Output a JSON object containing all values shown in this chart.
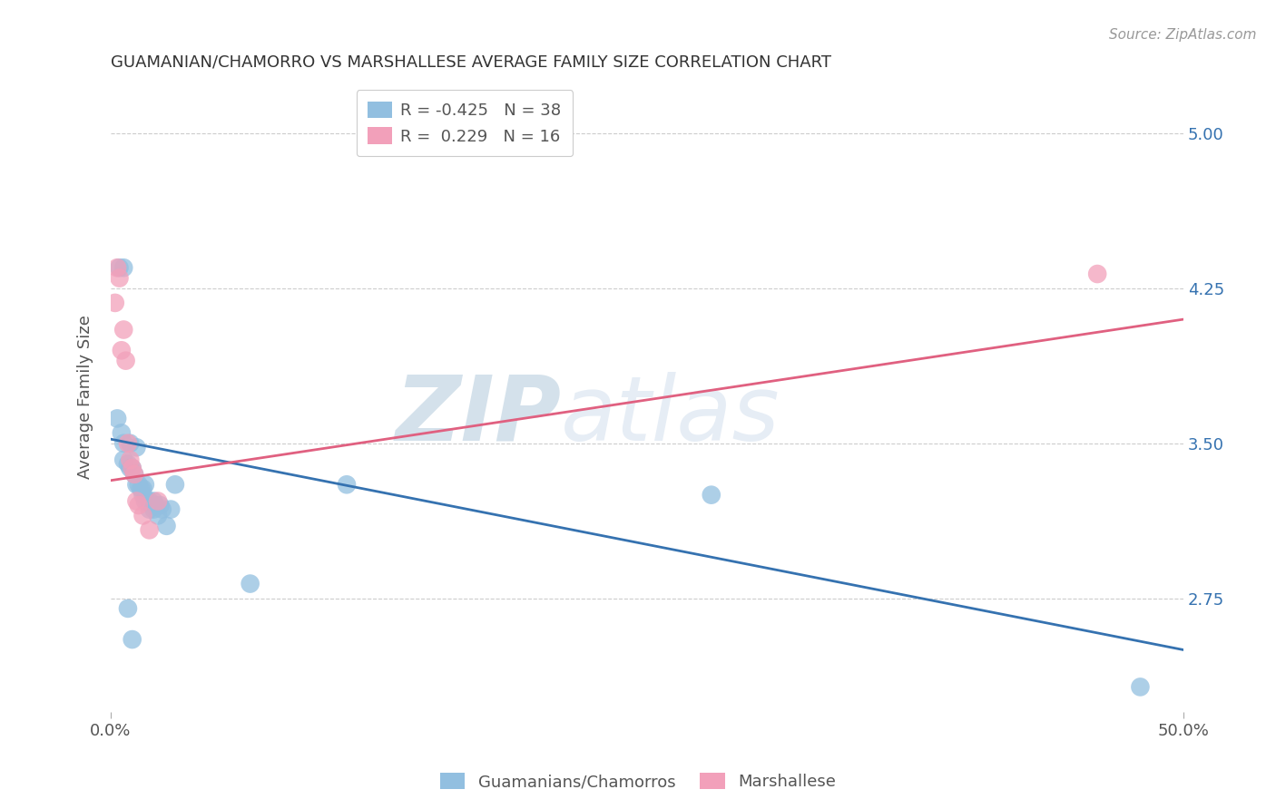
{
  "title": "GUAMANIAN/CHAMORRO VS MARSHALLESE AVERAGE FAMILY SIZE CORRELATION CHART",
  "source": "Source: ZipAtlas.com",
  "ylabel": "Average Family Size",
  "xlim": [
    0.0,
    0.5
  ],
  "ylim": [
    2.2,
    5.25
  ],
  "yticks": [
    2.75,
    3.5,
    4.25,
    5.0
  ],
  "xticks": [
    0.0,
    0.5
  ],
  "xticklabels": [
    "0.0%",
    "50.0%"
  ],
  "yticklabels_right": [
    "2.75",
    "3.50",
    "4.25",
    "5.00"
  ],
  "blue_color": "#92BFE0",
  "pink_color": "#F2A0BA",
  "blue_line_color": "#3572B0",
  "pink_line_color": "#E06080",
  "legend_blue_r": "-0.425",
  "legend_blue_n": "38",
  "legend_pink_r": "0.229",
  "legend_pink_n": "16",
  "blue_scatter_x": [
    0.004,
    0.006,
    0.003,
    0.005,
    0.006,
    0.009,
    0.006,
    0.008,
    0.009,
    0.01,
    0.011,
    0.012,
    0.012,
    0.013,
    0.014,
    0.015,
    0.016,
    0.015,
    0.016,
    0.017,
    0.018,
    0.019,
    0.02,
    0.018,
    0.02,
    0.021,
    0.022,
    0.023,
    0.024,
    0.026,
    0.028,
    0.03,
    0.065,
    0.11,
    0.28,
    0.48,
    0.008,
    0.01
  ],
  "blue_scatter_y": [
    4.35,
    4.35,
    3.62,
    3.55,
    3.5,
    3.5,
    3.42,
    3.4,
    3.38,
    3.38,
    3.35,
    3.48,
    3.3,
    3.3,
    3.28,
    3.28,
    3.3,
    3.25,
    3.22,
    3.22,
    3.22,
    3.2,
    3.22,
    3.18,
    3.18,
    3.2,
    3.15,
    3.2,
    3.18,
    3.1,
    3.18,
    3.3,
    2.82,
    3.3,
    3.25,
    2.32,
    2.7,
    2.55
  ],
  "pink_scatter_x": [
    0.003,
    0.004,
    0.002,
    0.006,
    0.005,
    0.007,
    0.008,
    0.009,
    0.01,
    0.011,
    0.012,
    0.013,
    0.015,
    0.018,
    0.022,
    0.46
  ],
  "pink_scatter_y": [
    4.35,
    4.3,
    4.18,
    4.05,
    3.95,
    3.9,
    3.5,
    3.42,
    3.38,
    3.35,
    3.22,
    3.2,
    3.15,
    3.08,
    3.22,
    4.32
  ],
  "blue_trend_x0": 0.0,
  "blue_trend_y0": 3.52,
  "blue_trend_x1": 0.5,
  "blue_trend_y1": 2.5,
  "pink_trend_x0": 0.0,
  "pink_trend_y0": 3.32,
  "pink_trend_x1": 0.5,
  "pink_trend_y1": 4.1,
  "watermark_zip": "ZIP",
  "watermark_atlas": "atlas",
  "background_color": "#FFFFFF",
  "grid_color": "#CCCCCC"
}
